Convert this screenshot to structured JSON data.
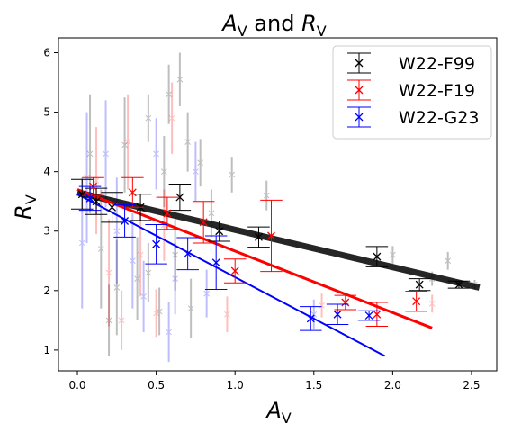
{
  "chart_data": {
    "type": "scatter",
    "title": "A_V and R_V",
    "title_parts": {
      "a": "A",
      "a_sub": "V",
      "and": " and ",
      "r": "R",
      "r_sub": "V"
    },
    "xlabel": {
      "main": "A",
      "sub": "V"
    },
    "ylabel": {
      "main": "R",
      "sub": "V"
    },
    "xlim": [
      -0.12,
      2.66
    ],
    "ylim": [
      0.65,
      6.25
    ],
    "xticks": [
      0.0,
      0.5,
      1.0,
      1.5,
      2.0,
      2.5
    ],
    "xtick_labels": [
      "0.0",
      "0.5",
      "1.0",
      "1.5",
      "2.0",
      "2.5"
    ],
    "yticks": [
      1,
      2,
      3,
      4,
      5,
      6
    ],
    "ytick_labels": [
      "1",
      "2",
      "3",
      "4",
      "5",
      "6"
    ],
    "legend_position": "top-right",
    "series": [
      {
        "name": "W22-F99",
        "color": "#000000",
        "binned": [
          {
            "x": 0.03,
            "y": 3.62,
            "yerr": 0.25,
            "xerr": 0.07
          },
          {
            "x": 0.12,
            "y": 3.5,
            "yerr": 0.22,
            "xerr": 0.07
          },
          {
            "x": 0.22,
            "y": 3.4,
            "yerr": 0.25,
            "xerr": 0.07
          },
          {
            "x": 0.4,
            "y": 3.4,
            "yerr": 0.22,
            "xerr": 0.07
          },
          {
            "x": 0.65,
            "y": 3.57,
            "yerr": 0.22,
            "xerr": 0.07
          },
          {
            "x": 0.9,
            "y": 3.0,
            "yerr": 0.17,
            "xerr": 0.07
          },
          {
            "x": 1.15,
            "y": 2.9,
            "yerr": 0.17,
            "xerr": 0.07
          },
          {
            "x": 1.9,
            "y": 2.57,
            "yerr": 0.17,
            "xerr": 0.07
          },
          {
            "x": 2.17,
            "y": 2.1,
            "yerr": 0.1,
            "xerr": 0.07
          },
          {
            "x": 2.42,
            "y": 2.1,
            "yerr": 0.06,
            "xerr": 0.07
          }
        ],
        "fit": {
          "x": [
            0.0,
            2.55
          ],
          "y": [
            3.65,
            2.05
          ]
        },
        "fit_width": 7
      },
      {
        "name": "W22-F19",
        "color": "#ff0000",
        "binned": [
          {
            "x": 0.1,
            "y": 3.75,
            "yerr": 0.15,
            "xerr": 0.07
          },
          {
            "x": 0.35,
            "y": 3.65,
            "yerr": 0.25,
            "xerr": 0.07
          },
          {
            "x": 0.57,
            "y": 3.3,
            "yerr": 0.27,
            "xerr": 0.07
          },
          {
            "x": 0.8,
            "y": 3.15,
            "yerr": 0.35,
            "xerr": 0.07
          },
          {
            "x": 1.0,
            "y": 2.33,
            "yerr": 0.2,
            "xerr": 0.07
          },
          {
            "x": 1.23,
            "y": 2.92,
            "yerr": 0.6,
            "xerr": 0.07
          },
          {
            "x": 1.7,
            "y": 1.8,
            "yerr": 0.12,
            "xerr": 0.07
          },
          {
            "x": 1.9,
            "y": 1.6,
            "yerr": 0.2,
            "xerr": 0.07
          },
          {
            "x": 2.15,
            "y": 1.82,
            "yerr": 0.17,
            "xerr": 0.07
          }
        ],
        "fit": {
          "x": [
            0.0,
            2.25
          ],
          "y": [
            3.7,
            1.37
          ]
        },
        "fit_width": 3
      },
      {
        "name": "W22-G23",
        "color": "#0000ff",
        "binned": [
          {
            "x": 0.08,
            "y": 3.55,
            "yerr": 0.2,
            "xerr": 0.07
          },
          {
            "x": 0.3,
            "y": 3.17,
            "yerr": 0.27,
            "xerr": 0.07
          },
          {
            "x": 0.5,
            "y": 2.78,
            "yerr": 0.33,
            "xerr": 0.07
          },
          {
            "x": 0.7,
            "y": 2.62,
            "yerr": 0.27,
            "xerr": 0.07
          },
          {
            "x": 0.88,
            "y": 2.47,
            "yerr": 0.45,
            "xerr": 0.07
          },
          {
            "x": 1.48,
            "y": 1.53,
            "yerr": 0.2,
            "xerr": 0.07
          },
          {
            "x": 1.65,
            "y": 1.6,
            "yerr": 0.17,
            "xerr": 0.07
          },
          {
            "x": 1.85,
            "y": 1.58,
            "yerr": 0.08,
            "xerr": 0.07
          }
        ],
        "fit": {
          "x": [
            0.0,
            1.95
          ],
          "y": [
            3.62,
            0.9
          ]
        },
        "fit_width": 2
      }
    ],
    "background_points": [
      {
        "x": 0.65,
        "y": 5.55,
        "yerr": 0.45,
        "c": "#000000"
      },
      {
        "x": 0.58,
        "y": 5.3,
        "yerr": 0.5,
        "c": "#000000"
      },
      {
        "x": 0.45,
        "y": 4.9,
        "yerr": 0.4,
        "c": "#000000"
      },
      {
        "x": 0.55,
        "y": 4.0,
        "yerr": 0.6,
        "c": "#000000"
      },
      {
        "x": 0.7,
        "y": 4.5,
        "yerr": 0.5,
        "c": "#000000"
      },
      {
        "x": 0.78,
        "y": 4.15,
        "yerr": 0.4,
        "c": "#000000"
      },
      {
        "x": 0.98,
        "y": 3.95,
        "yerr": 0.3,
        "c": "#000000"
      },
      {
        "x": 1.2,
        "y": 3.6,
        "yerr": 0.25,
        "c": "#000000"
      },
      {
        "x": 0.38,
        "y": 2.2,
        "yerr": 0.7,
        "c": "#000000"
      },
      {
        "x": 0.25,
        "y": 2.05,
        "yerr": 0.8,
        "c": "#000000"
      },
      {
        "x": 0.62,
        "y": 2.6,
        "yerr": 0.6,
        "c": "#000000"
      },
      {
        "x": 0.72,
        "y": 1.7,
        "yerr": 0.5,
        "c": "#000000"
      },
      {
        "x": 0.2,
        "y": 1.5,
        "yerr": 0.6,
        "c": "#000000"
      },
      {
        "x": 0.45,
        "y": 2.3,
        "yerr": 0.5,
        "c": "#000000"
      },
      {
        "x": 0.52,
        "y": 1.65,
        "yerr": 0.4,
        "c": "#000000"
      },
      {
        "x": 2.0,
        "y": 2.6,
        "yerr": 0.15,
        "c": "#000000"
      },
      {
        "x": 2.25,
        "y": 2.2,
        "yerr": 0.12,
        "c": "#000000"
      },
      {
        "x": 2.35,
        "y": 2.5,
        "yerr": 0.15,
        "c": "#000000"
      },
      {
        "x": 2.52,
        "y": 2.1,
        "yerr": 0.08,
        "c": "#000000"
      },
      {
        "x": 0.15,
        "y": 2.7,
        "yerr": 1.0,
        "c": "#000000"
      },
      {
        "x": 0.08,
        "y": 4.3,
        "yerr": 1.0,
        "c": "#000000"
      },
      {
        "x": 0.3,
        "y": 4.45,
        "yerr": 0.8,
        "c": "#000000"
      },
      {
        "x": 0.85,
        "y": 3.3,
        "yerr": 0.4,
        "c": "#000000"
      },
      {
        "x": 0.12,
        "y": 3.85,
        "yerr": 0.9,
        "c": "#ff0000"
      },
      {
        "x": 0.28,
        "y": 1.5,
        "yerr": 0.5,
        "c": "#ff0000"
      },
      {
        "x": 0.5,
        "y": 1.62,
        "yerr": 0.4,
        "c": "#ff0000"
      },
      {
        "x": 0.32,
        "y": 4.5,
        "yerr": 0.8,
        "c": "#ff0000"
      },
      {
        "x": 0.4,
        "y": 2.6,
        "yerr": 0.7,
        "c": "#ff0000"
      },
      {
        "x": 0.55,
        "y": 3.1,
        "yerr": 0.6,
        "c": "#ff0000"
      },
      {
        "x": 0.95,
        "y": 1.6,
        "yerr": 0.3,
        "c": "#ff0000"
      },
      {
        "x": 1.55,
        "y": 1.75,
        "yerr": 0.2,
        "c": "#ff0000"
      },
      {
        "x": 2.25,
        "y": 1.78,
        "yerr": 0.15,
        "c": "#ff0000"
      },
      {
        "x": 0.2,
        "y": 2.3,
        "yerr": 0.9,
        "c": "#ff0000"
      },
      {
        "x": 0.6,
        "y": 4.9,
        "yerr": 0.6,
        "c": "#ff0000"
      },
      {
        "x": 0.06,
        "y": 3.9,
        "yerr": 1.1,
        "c": "#0000ff"
      },
      {
        "x": 0.18,
        "y": 4.3,
        "yerr": 0.9,
        "c": "#0000ff"
      },
      {
        "x": 0.35,
        "y": 2.5,
        "yerr": 0.8,
        "c": "#0000ff"
      },
      {
        "x": 0.58,
        "y": 1.3,
        "yerr": 0.5,
        "c": "#0000ff"
      },
      {
        "x": 0.62,
        "y": 2.2,
        "yerr": 0.6,
        "c": "#0000ff"
      },
      {
        "x": 0.75,
        "y": 4.0,
        "yerr": 0.5,
        "c": "#0000ff"
      },
      {
        "x": 0.42,
        "y": 1.9,
        "yerr": 0.6,
        "c": "#0000ff"
      },
      {
        "x": 0.25,
        "y": 3.0,
        "yerr": 0.9,
        "c": "#0000ff"
      },
      {
        "x": 0.82,
        "y": 1.95,
        "yerr": 0.4,
        "c": "#0000ff"
      },
      {
        "x": 1.5,
        "y": 1.6,
        "yerr": 0.25,
        "c": "#0000ff"
      },
      {
        "x": 0.5,
        "y": 4.3,
        "yerr": 0.6,
        "c": "#0000ff"
      },
      {
        "x": 0.03,
        "y": 2.8,
        "yerr": 1.1,
        "c": "#0000ff"
      }
    ]
  }
}
